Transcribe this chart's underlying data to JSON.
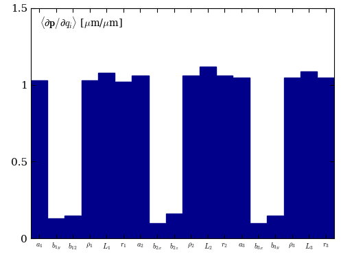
{
  "categories": [
    "$a_1$",
    "$b_{1y}$",
    "$b_{12}$",
    "$\\rho_1$",
    "$L_1$",
    "$r_1$",
    "$a_2$",
    "$b_{2x}$",
    "$b_{2z}$",
    "$\\rho_2$",
    "$L_2$",
    "$r_2$",
    "$a_3$",
    "$b_{3x}$",
    "$b_{3y}$",
    "$\\rho_3$",
    "$L_3$",
    "$r_3$"
  ],
  "values": [
    1.03,
    0.13,
    0.15,
    1.03,
    1.08,
    1.02,
    1.06,
    0.1,
    0.16,
    1.06,
    1.12,
    1.06,
    1.05,
    0.1,
    0.15,
    1.05,
    1.09,
    1.05
  ],
  "bar_color": "#00008B",
  "ylim": [
    0,
    1.5
  ],
  "yticks": [
    0,
    0.5,
    1.0,
    1.5
  ],
  "ytick_labels": [
    "0",
    "0.5",
    "1",
    "1.5"
  ],
  "ylabel_text": "$\\langle\\partial\\mathbf{p}/\\partial q_i\\rangle$ [$\\mu$m/$\\mu$m]",
  "background_color": "#ffffff",
  "figsize": [
    4.97,
    3.99
  ],
  "dpi": 100
}
